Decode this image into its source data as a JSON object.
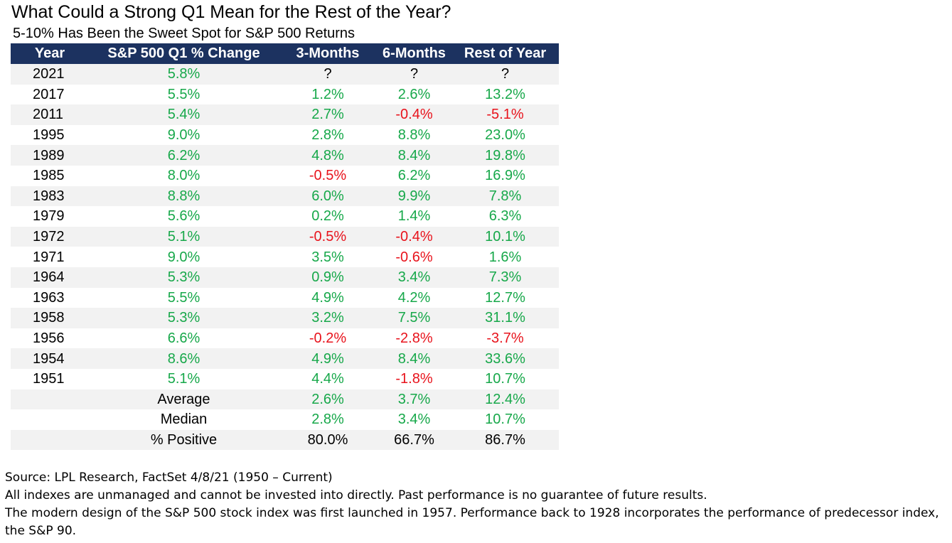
{
  "chart_data": {
    "type": "table",
    "title": "What Could a Strong Q1 Mean for the Rest of the Year?",
    "subtitle": "5-10% Has Been the Sweet Spot for S&P 500 Returns",
    "columns": [
      "Year",
      "S&P 500 Q1 % Change",
      "3-Months",
      "6-Months",
      "Rest of Year"
    ],
    "rows": [
      [
        "2021",
        "5.8%",
        "?",
        "?",
        "?"
      ],
      [
        "2017",
        "5.5%",
        "1.2%",
        "2.6%",
        "13.2%"
      ],
      [
        "2011",
        "5.4%",
        "2.7%",
        "-0.4%",
        "-5.1%"
      ],
      [
        "1995",
        "9.0%",
        "2.8%",
        "8.8%",
        "23.0%"
      ],
      [
        "1989",
        "6.2%",
        "4.8%",
        "8.4%",
        "19.8%"
      ],
      [
        "1985",
        "8.0%",
        "-0.5%",
        "6.2%",
        "16.9%"
      ],
      [
        "1983",
        "8.8%",
        "6.0%",
        "9.9%",
        "7.8%"
      ],
      [
        "1979",
        "5.6%",
        "0.2%",
        "1.4%",
        "6.3%"
      ],
      [
        "1972",
        "5.1%",
        "-0.5%",
        "-0.4%",
        "10.1%"
      ],
      [
        "1971",
        "9.0%",
        "3.5%",
        "-0.6%",
        "1.6%"
      ],
      [
        "1964",
        "5.3%",
        "0.9%",
        "3.4%",
        "7.3%"
      ],
      [
        "1963",
        "5.5%",
        "4.9%",
        "4.2%",
        "12.7%"
      ],
      [
        "1958",
        "5.3%",
        "3.2%",
        "7.5%",
        "31.1%"
      ],
      [
        "1956",
        "6.6%",
        "-0.2%",
        "-2.8%",
        "-3.7%"
      ],
      [
        "1954",
        "8.6%",
        "4.9%",
        "8.4%",
        "33.6%"
      ],
      [
        "1951",
        "5.1%",
        "4.4%",
        "-1.8%",
        "10.7%"
      ]
    ],
    "summary": [
      {
        "label": "Average",
        "values": [
          "2.6%",
          "3.7%",
          "12.4%"
        ],
        "colored": true
      },
      {
        "label": "Median",
        "values": [
          "2.8%",
          "3.4%",
          "10.7%"
        ],
        "colored": true
      },
      {
        "label": "% Positive",
        "values": [
          "80.0%",
          "66.7%",
          "86.7%"
        ],
        "colored": false
      }
    ],
    "colors": {
      "header_bg": "#1c3260",
      "positive": "#17a84a",
      "negative": "#e8131c",
      "stripe": "#f2f2f2"
    }
  },
  "footer": {
    "source": "Source:  LPL Research, FactSet 4/8/21 (1950 – Current)",
    "disclaimer": "All indexes are unmanaged and cannot be invested into directly.  Past performance is no guarantee of future results.",
    "note_line1": "The modern design of the S&P 500 stock index was first launched in 1957. Performance back to 1928 incorporates the performance of predecessor index,",
    "note_line2": "the S&P 90."
  }
}
